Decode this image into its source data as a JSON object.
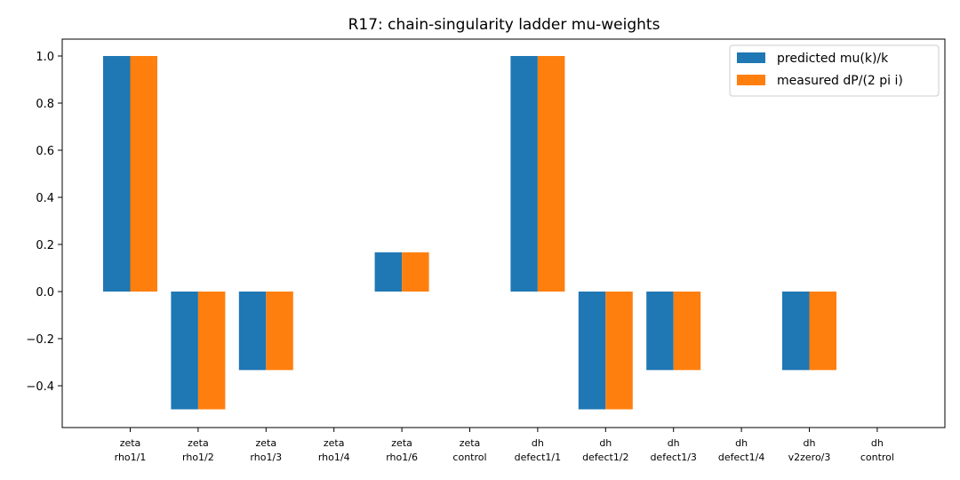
{
  "chart_data": {
    "type": "bar",
    "title": "R17: chain-singularity ladder mu-weights",
    "xlabel": "",
    "ylabel": "",
    "ylim": [
      -0.5,
      1.0
    ],
    "yticks": [
      "1.0",
      "0.8",
      "0.6",
      "0.4",
      "0.2",
      "0.0",
      "−0.2",
      "−0.4"
    ],
    "ytick_values": [
      1.0,
      0.8,
      0.6,
      0.4,
      0.2,
      0.0,
      -0.2,
      -0.4
    ],
    "grid": false,
    "legend_position": "top-right",
    "categories": [
      {
        "line1": "zeta",
        "line2": "rho1/1"
      },
      {
        "line1": "zeta",
        "line2": "rho1/2"
      },
      {
        "line1": "zeta",
        "line2": "rho1/3"
      },
      {
        "line1": "zeta",
        "line2": "rho1/4"
      },
      {
        "line1": "zeta",
        "line2": "rho1/6"
      },
      {
        "line1": "zeta",
        "line2": "control"
      },
      {
        "line1": "dh",
        "line2": "defect1/1"
      },
      {
        "line1": "dh",
        "line2": "defect1/2"
      },
      {
        "line1": "dh",
        "line2": "defect1/3"
      },
      {
        "line1": "dh",
        "line2": "defect1/4"
      },
      {
        "line1": "dh",
        "line2": "v2zero/3"
      },
      {
        "line1": "dh",
        "line2": "control"
      }
    ],
    "series": [
      {
        "name": "predicted mu(k)/k",
        "color": "#1f77b4",
        "values": [
          1.0,
          -0.5,
          -0.3333,
          0.0,
          0.1667,
          0.0,
          1.0,
          -0.5,
          -0.3333,
          0.0,
          -0.3333,
          0.0
        ]
      },
      {
        "name": "measured dP/(2 pi i)",
        "color": "#ff7f0e",
        "values": [
          1.0,
          -0.5,
          -0.3333,
          0.0,
          0.1667,
          0.0,
          1.0,
          -0.5,
          -0.3333,
          0.0,
          -0.3333,
          0.0
        ]
      }
    ]
  }
}
